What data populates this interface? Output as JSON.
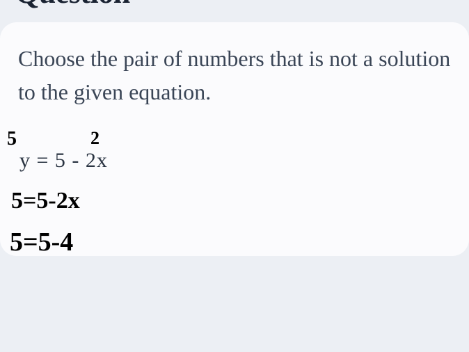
{
  "page": {
    "background_color": "#eceff4",
    "card_background_color": "#fbfbfd",
    "heading_fragment": "Question",
    "instruction_text": "Choose the pair of numbers that is not a solution to the given equation.",
    "equation_text": "y = 5 - 2x",
    "text_color": "#3a4556",
    "heading_color": "#1a2332",
    "instruction_fontsize": 32,
    "equation_fontsize": 30
  },
  "handwriting": {
    "annotations": {
      "above_y_value": "5",
      "above_x_coef": "2"
    },
    "work_lines": {
      "line1": "5=5-2x",
      "line2": "5=5-4"
    },
    "color": "#000000",
    "fontsize_small": 28,
    "fontsize_lines": 36
  }
}
